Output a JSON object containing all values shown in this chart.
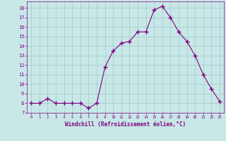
{
  "x": [
    0,
    1,
    2,
    3,
    4,
    5,
    6,
    7,
    8,
    9,
    10,
    11,
    12,
    13,
    14,
    15,
    16,
    17,
    18,
    19,
    20,
    21,
    22,
    23
  ],
  "y": [
    8,
    8,
    8.5,
    8,
    8,
    8,
    8,
    7.5,
    8,
    11.8,
    13.5,
    14.3,
    14.5,
    15.5,
    15.5,
    17.8,
    18.2,
    17.0,
    15.5,
    14.5,
    13.0,
    11.0,
    9.5,
    8.2
  ],
  "line_color": "#800080",
  "marker": "+",
  "bg_color": "#c8e8e8",
  "grid_color": "#a0c8c8",
  "xlabel": "Windchill (Refroidissement éolien,°C)",
  "yticks": [
    7,
    8,
    9,
    10,
    11,
    12,
    13,
    14,
    15,
    16,
    17,
    18
  ],
  "xlim": [
    -0.5,
    23.5
  ],
  "ylim": [
    7,
    18.7
  ],
  "axis_color": "#800080",
  "tick_color": "#800080",
  "label_color": "#800080",
  "markersize": 4,
  "linewidth": 0.8
}
